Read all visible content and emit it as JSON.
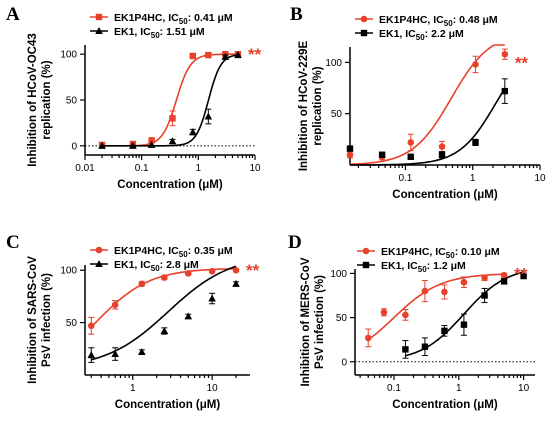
{
  "colors": {
    "ek1p4hc": "#e8402a",
    "ek1": "#000000"
  },
  "chart_data": [
    {
      "type": "line",
      "panel": "A",
      "xlabel": "Concentration (μM)",
      "ylabel_lines": [
        "Inhibition of HCoV-OC43",
        "replication (%)"
      ],
      "xscale": "log",
      "xlim": [
        0.01,
        10
      ],
      "xticks": [
        0.01,
        0.1,
        1,
        10
      ],
      "xtick_labels": [
        "0.01",
        "0.1",
        "1",
        "10"
      ],
      "ylim": [
        -10,
        110
      ],
      "yticks": [
        0,
        50,
        100
      ],
      "legend_position": "top-left",
      "significance": "**",
      "series": [
        {
          "name": "EK1P4HC, IC50: 0.41 μM",
          "label_main": "EK1P4HC, IC",
          "label_sub": "50",
          "label_tail": ": 0.41 μM",
          "marker": "square",
          "ic50": 0.41,
          "hill": 3.5,
          "x": [
            0.02,
            0.07,
            0.15,
            0.35,
            0.8,
            1.5,
            3.0,
            5.0
          ],
          "y": [
            1,
            2,
            6,
            30,
            98,
            99,
            100,
            100
          ],
          "err": [
            0,
            2,
            2,
            8,
            2,
            0,
            0,
            0
          ]
        },
        {
          "name": "EK1, IC50: 1.51 μM",
          "label_main": "EK1, IC",
          "label_sub": "50",
          "label_tail": ": 1.51 μM",
          "marker": "triangle",
          "ic50": 1.51,
          "hill": 4.0,
          "x": [
            0.02,
            0.07,
            0.15,
            0.35,
            0.8,
            1.5,
            3.0,
            5.0
          ],
          "y": [
            0,
            0,
            1,
            5,
            15,
            32,
            97,
            99
          ],
          "err": [
            0,
            0,
            0,
            2,
            3,
            8,
            2,
            0
          ]
        }
      ]
    },
    {
      "type": "line",
      "panel": "B",
      "xlabel": "Concentration (μM)",
      "ylabel_lines": [
        "Inhibition of HCoV-229E",
        "replication (%)"
      ],
      "xscale": "log",
      "xlim": [
        0.015,
        10
      ],
      "xticks": [
        0.1,
        1,
        10
      ],
      "xtick_labels": [
        "0.1",
        "1",
        "10"
      ],
      "ylim": [
        0,
        115
      ],
      "yticks": [
        50,
        100
      ],
      "legend_position": "top-left",
      "significance": "**",
      "series": [
        {
          "name": "EK1P4HC, IC50: 0.48 μM",
          "label_main": "EK1P4HC, IC",
          "label_sub": "50",
          "label_tail": ": 0.48 μM",
          "marker": "circle",
          "ic50": 0.48,
          "hill": 1.5,
          "top": 130,
          "x": [
            0.015,
            0.045,
            0.12,
            0.35,
            1.1,
            3.0
          ],
          "y": [
            10,
            8,
            22,
            18,
            98,
            108
          ],
          "err": [
            3,
            3,
            8,
            5,
            8,
            5
          ]
        },
        {
          "name": "EK1, IC50: 2.2 μM",
          "label_main": "EK1, IC",
          "label_sub": "50",
          "label_tail": ": 2.2 μM",
          "marker": "square",
          "ic50": 2.2,
          "hill": 1.6,
          "top": 120,
          "x": [
            0.015,
            0.045,
            0.12,
            0.35,
            1.1,
            3.0
          ],
          "y": [
            16,
            10,
            8,
            10,
            22,
            72
          ],
          "err": [
            2,
            2,
            2,
            3,
            3,
            12
          ]
        }
      ]
    },
    {
      "type": "line",
      "panel": "C",
      "xlabel": "Concentration (μM)",
      "ylabel_lines": [
        "Inhibition of SARS-CoV",
        "PsV infection (%)"
      ],
      "xscale": "log",
      "xlim": [
        0.25,
        30
      ],
      "xticks": [
        1,
        10
      ],
      "xtick_labels": [
        "1",
        "10"
      ],
      "ylim": [
        0,
        105
      ],
      "yticks": [
        50,
        100
      ],
      "legend_position": "top-left",
      "significance": "**",
      "series": [
        {
          "name": "EK1P4HC, IC50: 0.35 μM",
          "label_main": "EK1P4HC, IC",
          "label_sub": "50",
          "label_tail": ": 0.35 μM",
          "marker": "circle",
          "ic50": 0.35,
          "hill": 1.3,
          "top": 102,
          "bottom": 0,
          "x": [
            0.3,
            0.6,
            1.3,
            2.5,
            5.0,
            10.0,
            20.0
          ],
          "y": [
            47,
            67,
            87,
            93,
            97,
            99,
            100
          ],
          "err": [
            8,
            4,
            2,
            2,
            1,
            1,
            1
          ]
        },
        {
          "name": "EK1, IC50: 2.8 μM",
          "label_main": "EK1, IC",
          "label_sub": "50",
          "label_tail": ": 2.8 μM",
          "marker": "triangle",
          "ic50": 2.8,
          "hill": 1.1,
          "top": 115,
          "bottom": 6,
          "x": [
            0.3,
            0.6,
            1.3,
            2.5,
            5.0,
            10.0,
            20.0
          ],
          "y": [
            19,
            20,
            22,
            42,
            56,
            73,
            87
          ],
          "err": [
            7,
            6,
            2,
            3,
            2,
            5,
            2
          ]
        }
      ]
    },
    {
      "type": "line",
      "panel": "D",
      "xlabel": "Concentration (μM)",
      "ylabel_lines": [
        "Inhibition of MERS-CoV",
        "PsV infection (%)"
      ],
      "xscale": "log",
      "xlim": [
        0.025,
        15
      ],
      "xticks": [
        0.1,
        1,
        10
      ],
      "xtick_labels": [
        "0.1",
        "1",
        "10"
      ],
      "ylim": [
        -15,
        105
      ],
      "yticks": [
        0,
        50,
        100
      ],
      "legend_position": "top-left",
      "significance": "**",
      "series": [
        {
          "name": "EK1P4HC, IC50: 0.10 μM",
          "label_main": "EK1P4HC, IC",
          "label_sub": "50",
          "label_tail": ": 0.10 μM",
          "marker": "circle",
          "ic50": 0.1,
          "hill": 1.2,
          "top": 100,
          "bottom": 0,
          "x": [
            0.04,
            0.07,
            0.15,
            0.3,
            0.6,
            1.2,
            2.5,
            5.0
          ],
          "y": [
            27,
            56,
            53,
            80,
            79,
            90,
            95,
            98
          ],
          "err": [
            10,
            4,
            6,
            12,
            8,
            6,
            3,
            2
          ]
        },
        {
          "name": "EK1, IC50: 1.2 μM",
          "label_main": "EK1, IC",
          "label_sub": "50",
          "label_tail": ": 1.2 μM",
          "marker": "square",
          "ic50": 1.2,
          "hill": 1.3,
          "top": 108,
          "bottom": 0,
          "x": [
            0.15,
            0.3,
            0.6,
            1.2,
            2.5,
            5.0,
            10.0
          ],
          "y": [
            14,
            17,
            35,
            42,
            75,
            91,
            97
          ],
          "err": [
            10,
            10,
            6,
            12,
            8,
            3,
            2
          ]
        }
      ]
    }
  ]
}
